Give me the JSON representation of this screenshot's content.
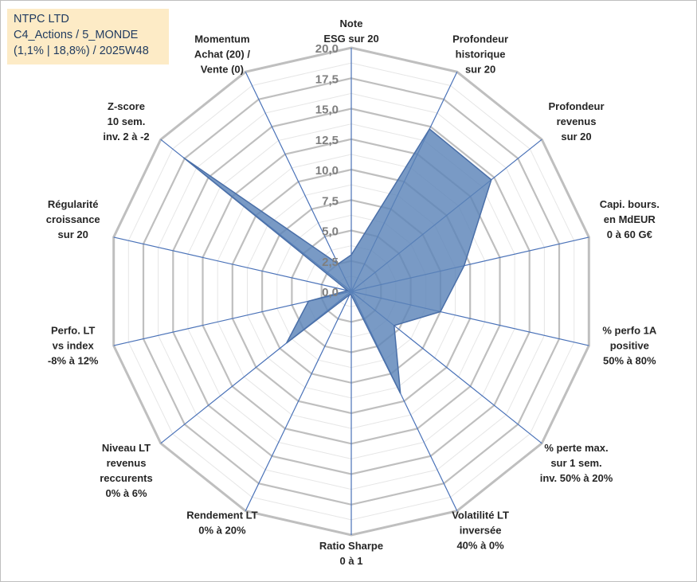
{
  "info": {
    "line1": "NTPC LTD",
    "line2": "C4_Actions / 5_MONDE",
    "line3": "(1,1% | 18,8%) / 2025W48"
  },
  "chart_data": {
    "type": "radar",
    "title": "",
    "rmax": 20,
    "tick_step": 2.5,
    "ticks": [
      "0,0",
      "2,5",
      "5,0",
      "7,5",
      "10,0",
      "12,5",
      "15,0",
      "17,5",
      "20,0"
    ],
    "axes": [
      {
        "label": [
          "Note",
          "ESG sur 20"
        ],
        "value": 3.0
      },
      {
        "label": [
          "Profondeur",
          "historique",
          "sur 20"
        ],
        "value": 14.8
      },
      {
        "label": [
          "Profondeur",
          "revenus",
          "sur 20"
        ],
        "value": 14.7
      },
      {
        "label": [
          "Capi. bours.",
          "en MdEUR",
          "0 à 60 G€"
        ],
        "value": 9.5
      },
      {
        "label": [
          "% perfo 1A",
          "positive",
          "50% à 80%"
        ],
        "value": 7.5
      },
      {
        "label": [
          "% perte max.",
          "sur 1 sem.",
          "inv. 50% à 20%"
        ],
        "value": 4.5
      },
      {
        "label": [
          "Volatilité LT",
          "inversée",
          "40% à 0%"
        ],
        "value": 9.3
      },
      {
        "label": [
          "Ratio Sharpe",
          "0 à 1"
        ],
        "value": 0.3
      },
      {
        "label": [
          "Rendement LT",
          "0% à 20%"
        ],
        "value": 0.3
      },
      {
        "label": [
          "Niveau LT",
          "revenus",
          "reccurents",
          "0% à 6%"
        ],
        "value": 6.8
      },
      {
        "label": [
          "Perfo. LT",
          "vs index",
          "-8% à 12%"
        ],
        "value": 3.6
      },
      {
        "label": [
          "Régularité",
          "croissance",
          "sur 20"
        ],
        "value": 0.3
      },
      {
        "label": [
          "Z-score",
          "10 sem.",
          "inv. 2 à -2"
        ],
        "value": 17.6
      },
      {
        "label": [
          "Momentum",
          "Achat (20) /",
          "Vente (0)"
        ],
        "value": 2.5
      }
    ]
  }
}
